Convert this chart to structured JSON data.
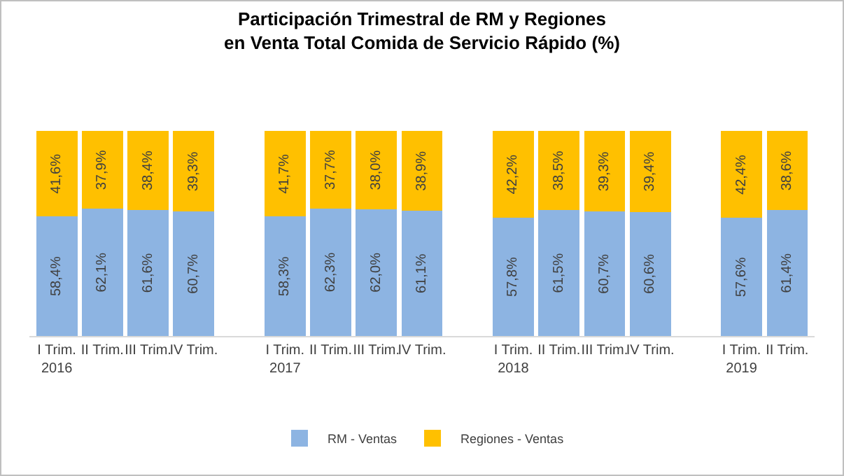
{
  "chart_data": {
    "type": "bar",
    "stacked": true,
    "title": "Participación Trimestral de RM y Regiones\nen Venta Total Comida de Servicio Rápido (%)",
    "categories": [
      "I Trim.\n2016",
      "II Trim.",
      "III Trim.",
      "IV Trim.",
      null,
      "I Trim.\n2017",
      "II Trim.",
      "III Trim.",
      "IV Trim.",
      null,
      "I Trim.\n2018",
      "II Trim.",
      "III Trim.",
      "IV Trim.",
      null,
      "I Trim.\n2019",
      "II Trim."
    ],
    "series": [
      {
        "name": "RM - Ventas",
        "color": "#8db4e2",
        "values": [
          58.4,
          62.1,
          61.6,
          60.7,
          null,
          58.3,
          62.3,
          62.0,
          61.1,
          null,
          57.8,
          61.5,
          60.7,
          60.6,
          null,
          57.6,
          61.4
        ],
        "value_labels": [
          "58,4%",
          "62,1%",
          "61,6%",
          "60,7%",
          null,
          "58,3%",
          "62,3%",
          "62,0%",
          "61,1%",
          null,
          "57,8%",
          "61,5%",
          "60,7%",
          "60,6%",
          null,
          "57,6%",
          "61,4%"
        ]
      },
      {
        "name": "Regiones - Ventas",
        "color": "#ffc000",
        "values": [
          41.6,
          37.9,
          38.4,
          39.3,
          null,
          41.7,
          37.7,
          38.0,
          38.9,
          null,
          42.2,
          38.5,
          39.3,
          39.4,
          null,
          42.4,
          38.6
        ],
        "value_labels": [
          "41,6%",
          "37,9%",
          "38,4%",
          "39,3%",
          null,
          "41,7%",
          "37,7%",
          "38,0%",
          "38,9%",
          null,
          "42,2%",
          "38,5%",
          "39,3%",
          "39,4%",
          null,
          "42,4%",
          "38,6%"
        ]
      }
    ],
    "legend": "bottom"
  }
}
